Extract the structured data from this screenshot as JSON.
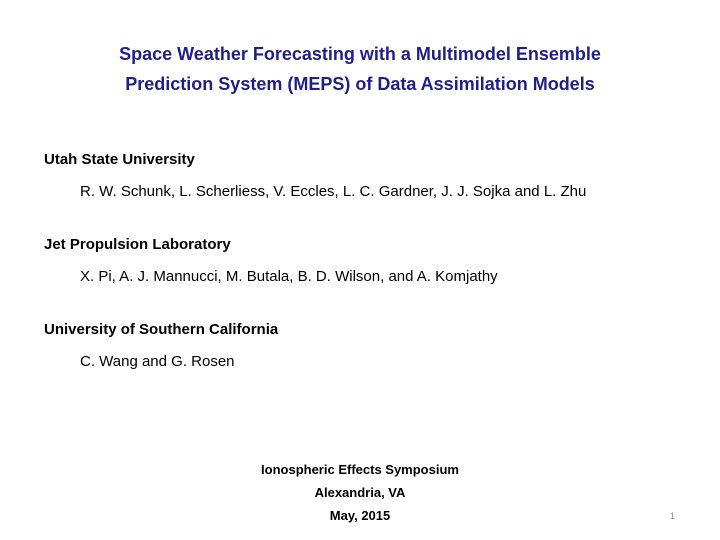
{
  "title_lines": [
    "Space Weather Forecasting with a Multimodel Ensemble",
    "Prediction System (MEPS) of Data Assimilation Models"
  ],
  "groups": [
    {
      "affiliation": "Utah State University",
      "authors": "R. W. Schunk, L. Scherliess, V. Eccles, L. C. Gardner, J. J. Sojka and L. Zhu"
    },
    {
      "affiliation": "Jet Propulsion Laboratory",
      "authors": "X. Pi, A. J. Mannucci, M. Butala, B. D. Wilson, and A. Komjathy"
    },
    {
      "affiliation": "University of Southern California",
      "authors": "C. Wang and G. Rosen"
    }
  ],
  "footer": [
    "Ionospheric Effects Symposium",
    "Alexandria, VA",
    "May, 2015"
  ],
  "page_number": "1"
}
